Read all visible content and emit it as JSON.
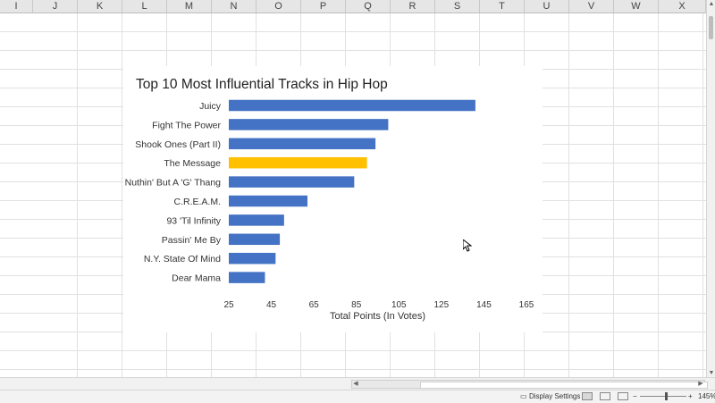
{
  "sheet": {
    "columns": [
      "I",
      "J",
      "K",
      "L",
      "M",
      "N",
      "O",
      "P",
      "Q",
      "R",
      "S",
      "T",
      "U",
      "V",
      "W",
      "X"
    ]
  },
  "status": {
    "display_settings": "Display Settings",
    "zoom": "145%"
  },
  "chart_data": {
    "type": "bar",
    "orientation": "horizontal",
    "title": "Top 10 Most Influential Tracks in Hip Hop",
    "xlabel": "Total Points (In Votes)",
    "ylabel": "",
    "xlim": [
      25,
      165
    ],
    "xticks": [
      25,
      45,
      65,
      85,
      105,
      125,
      145,
      165
    ],
    "grid": false,
    "categories": [
      "Juicy",
      "Fight The Power",
      "Shook Ones (Part II)",
      "The Message",
      "Nuthin' But A 'G' Thang",
      "C.R.E.A.M.",
      "93 'Til Infinity",
      "Passin' Me By",
      "N.Y. State Of Mind",
      "Dear Mama"
    ],
    "values": [
      141,
      100,
      94,
      90,
      84,
      62,
      51,
      49,
      47,
      42
    ],
    "colors": [
      "#4472c4",
      "#4472c4",
      "#4472c4",
      "#ffc000",
      "#4472c4",
      "#4472c4",
      "#4472c4",
      "#4472c4",
      "#4472c4",
      "#4472c4"
    ]
  }
}
